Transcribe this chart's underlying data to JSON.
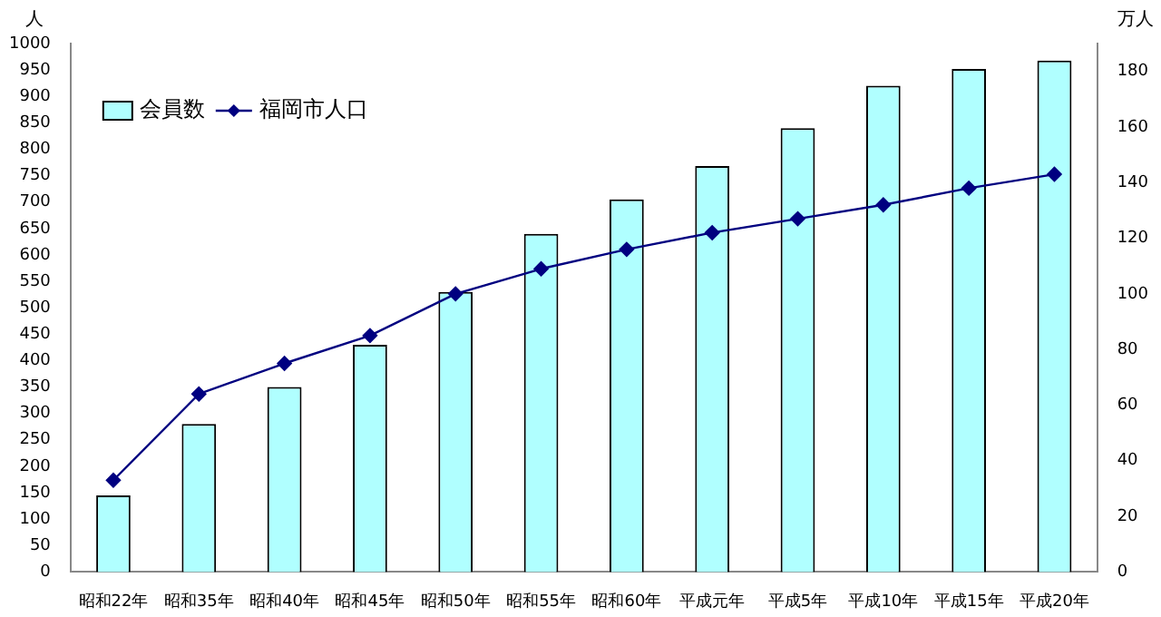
{
  "chart_data": {
    "type": "bar",
    "ylabel": "人",
    "y2label": "万人",
    "categories": [
      "昭和22年",
      "昭和35年",
      "昭和40年",
      "昭和45年",
      "昭和50年",
      "昭和55年",
      "昭和60年",
      "平成元年",
      "平成5年",
      "平成10年",
      "平成15年",
      "平成20年"
    ],
    "series": [
      {
        "name": "会員数",
        "color": "#b0ffff",
        "values": [
          145,
          280,
          350,
          430,
          530,
          640,
          705,
          768,
          840,
          920,
          952,
          968
        ]
      },
      {
        "name": "福岡市人口",
        "type": "line",
        "axis": "y2",
        "color": "#000080",
        "values": [
          33,
          64,
          75,
          85,
          100,
          109,
          116,
          122,
          127,
          132,
          138,
          143
        ]
      }
    ],
    "ylim": [
      0,
      1000
    ],
    "yticks": [
      0,
      50,
      100,
      150,
      200,
      250,
      300,
      350,
      400,
      450,
      500,
      550,
      600,
      650,
      700,
      750,
      800,
      850,
      900,
      950,
      1000
    ],
    "y2lim": [
      0,
      190
    ],
    "y2ticks": [
      0,
      20,
      40,
      60,
      80,
      100,
      120,
      140,
      160,
      180
    ],
    "grid": false,
    "legend": "top left",
    "marker": "diamond",
    "line_style": "solid"
  }
}
